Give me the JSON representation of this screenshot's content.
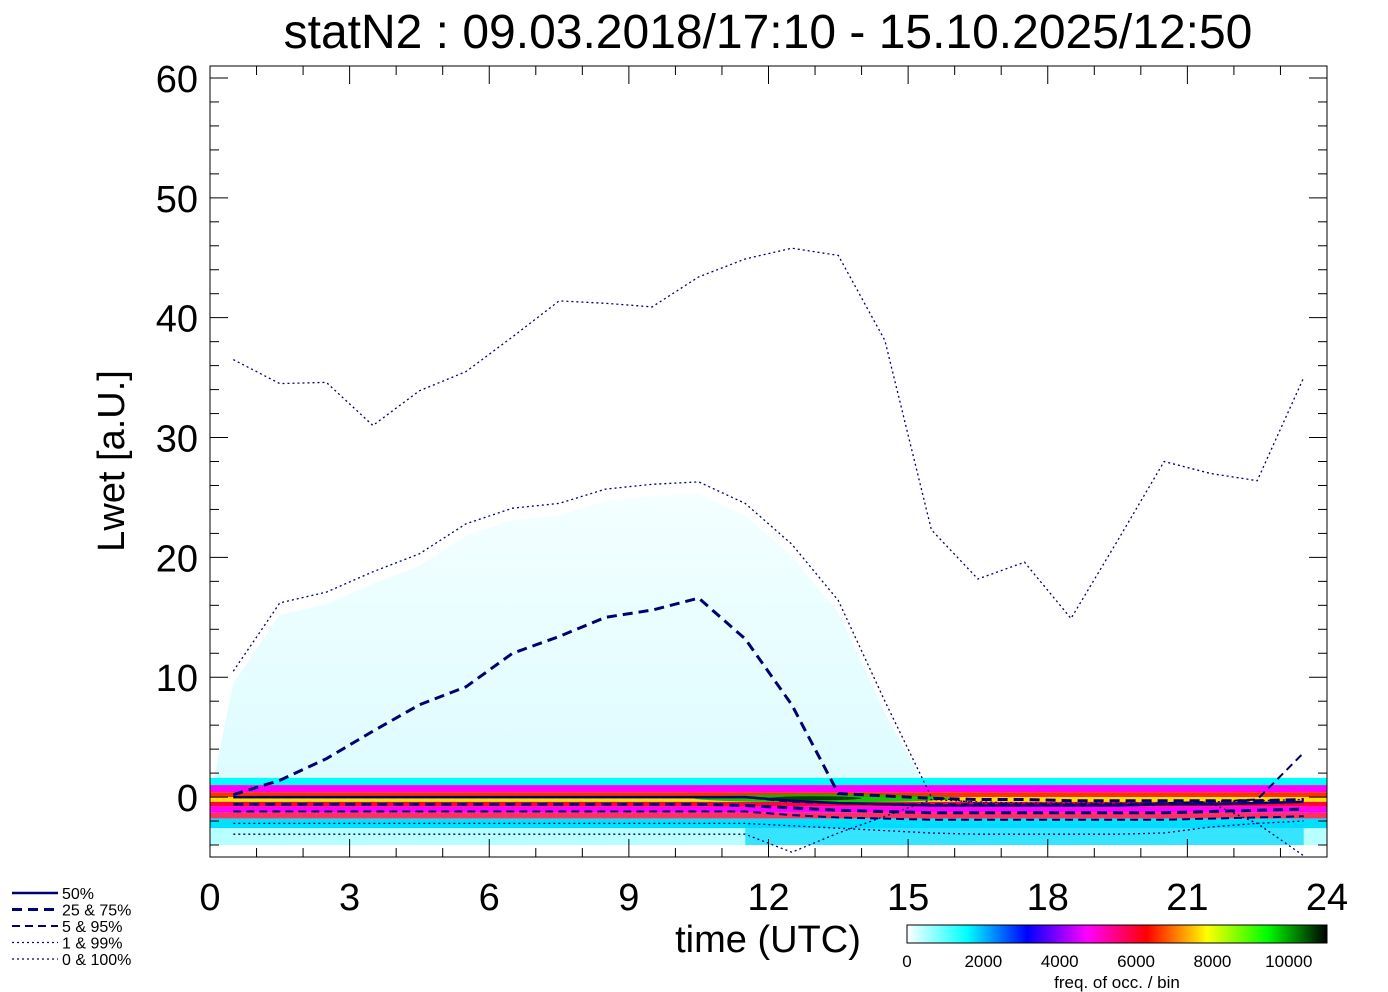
{
  "chart_data": {
    "type": "line",
    "title": "statN2 : 09.03.2018/17:10 - 15.10.2025/12:50",
    "xlabel": "time (UTC)",
    "ylabel": "Lwet [a.U.]",
    "xlim": [
      0,
      24
    ],
    "ylim": [
      -5,
      61
    ],
    "xticks": [
      0,
      3,
      6,
      9,
      12,
      15,
      18,
      21,
      24
    ],
    "yticks": [
      0,
      10,
      20,
      30,
      40,
      50,
      60
    ],
    "x": [
      0.5,
      1.5,
      2.5,
      3.5,
      4.5,
      5.5,
      6.5,
      7.5,
      8.5,
      9.5,
      10.5,
      11.5,
      12.5,
      13.5,
      14.5,
      15.5,
      16.5,
      17.5,
      18.5,
      19.5,
      20.5,
      21.5,
      22.5,
      23.5
    ],
    "series": [
      {
        "name": "50%",
        "style": "solid",
        "values": [
          0,
          0,
          0,
          0,
          0,
          0,
          0,
          0,
          0,
          0,
          0,
          0,
          -0.3,
          -0.5,
          -0.6,
          -0.7,
          -0.7,
          -0.7,
          -0.7,
          -0.7,
          -0.6,
          -0.6,
          -0.5,
          -0.4
        ]
      },
      {
        "name": "25%",
        "style": "dashed-thick",
        "values": [
          -0.6,
          -0.6,
          -0.6,
          -0.6,
          -0.6,
          -0.6,
          -0.6,
          -0.6,
          -0.6,
          -0.6,
          -0.6,
          -0.7,
          -0.9,
          -1.1,
          -1.2,
          -1.3,
          -1.3,
          -1.3,
          -1.3,
          -1.3,
          -1.3,
          -1.2,
          -1.1,
          -1.0
        ]
      },
      {
        "name": "75%",
        "style": "dashed-thick",
        "values": [
          0.2,
          1.4,
          3.2,
          5.5,
          7.7,
          9.2,
          12.0,
          13.4,
          15.0,
          15.6,
          16.6,
          13.2,
          7.7,
          0.3,
          0.1,
          -0.1,
          -0.2,
          -0.2,
          -0.3,
          -0.3,
          -0.3,
          -0.3,
          -0.3,
          -0.2
        ]
      },
      {
        "name": "5%",
        "style": "dashed",
        "values": [
          -1.2,
          -1.2,
          -1.2,
          -1.2,
          -1.2,
          -1.2,
          -1.2,
          -1.2,
          -1.2,
          -1.2,
          -1.2,
          -1.2,
          -1.5,
          -1.7,
          -1.8,
          -1.9,
          -1.9,
          -1.9,
          -1.9,
          -1.9,
          -1.9,
          -1.8,
          -1.7,
          -1.6
        ]
      },
      {
        "name": "95%",
        "style": "dashed",
        "values": [
          0.0,
          0.0,
          0.0,
          0.0,
          0.0,
          0.0,
          0.0,
          0.0,
          0.0,
          0.0,
          0.0,
          0.0,
          -0.4,
          -0.5,
          -0.6,
          -0.6,
          -0.6,
          -0.6,
          -0.6,
          -0.6,
          -0.5,
          -0.4,
          -0.2,
          3.7
        ]
      },
      {
        "name": "1%",
        "style": "dotted",
        "values": [
          -2.2,
          -2.2,
          -2.2,
          -2.2,
          -2.2,
          -2.2,
          -2.2,
          -2.2,
          -2.2,
          -2.2,
          -2.2,
          -2.2,
          -2.4,
          -2.6,
          -2.8,
          -3.0,
          -3.1,
          -3.1,
          -3.1,
          -3.1,
          -3.0,
          -2.5,
          -2.2,
          -2.0
        ]
      },
      {
        "name": "99%",
        "style": "dotted",
        "values": [
          10.5,
          16.2,
          17.1,
          18.8,
          20.3,
          22.8,
          24.1,
          24.5,
          25.7,
          26.1,
          26.3,
          24.5,
          21.1,
          16.4,
          8.0,
          0.0,
          -0.5,
          -0.6,
          -0.6,
          -0.6,
          -0.5,
          -0.4,
          -0.3,
          -0.2
        ]
      },
      {
        "name": "0%",
        "style": "dotted",
        "values": [
          -3.1,
          -3.1,
          -3.1,
          -3.1,
          -3.1,
          -3.1,
          -3.1,
          -3.1,
          -3.1,
          -3.1,
          -3.1,
          -3.1,
          -4.6,
          -3.0,
          -1.6,
          -0.2,
          -0.4,
          -0.5,
          -0.5,
          -0.5,
          -0.5,
          -0.5,
          -2.2,
          -4.9
        ]
      },
      {
        "name": "100%",
        "style": "dotted",
        "values": [
          36.5,
          34.5,
          34.6,
          31.0,
          33.9,
          35.5,
          38.4,
          41.4,
          41.2,
          40.9,
          43.4,
          44.9,
          45.8,
          45.2,
          38.1,
          22.3,
          18.2,
          19.6,
          14.9,
          21.4,
          28.0,
          27.0,
          26.4,
          35.0
        ]
      }
    ],
    "legend": {
      "placement": "bottom-left",
      "entries": [
        "50%",
        "25 &  75%",
        " 5 &  95%",
        " 1 &  99%",
        " 0 & 100%"
      ]
    },
    "colorbar": {
      "label": "freq. of occ. / bin",
      "min": 0,
      "max": 11000,
      "ticks": [
        0,
        2000,
        4000,
        6000,
        8000,
        10000
      ],
      "colors": [
        "#ffffff",
        "#00ffff",
        "#0000ff",
        "#ff00ff",
        "#ff0000",
        "#ffff00",
        "#00ff00",
        "#000000"
      ]
    },
    "heatmap_bands": [
      {
        "y": [
          1.0,
          1.6
        ],
        "color": "#00ffff"
      },
      {
        "y": [
          0.4,
          1.0
        ],
        "color": "#ff00ff"
      },
      {
        "y": [
          0.0,
          0.4
        ],
        "color": "#ff3000"
      },
      {
        "y": [
          -0.4,
          0.0
        ],
        "color": "#ffe000"
      },
      {
        "y": [
          -0.8,
          -0.4
        ],
        "color": "#ff0040"
      },
      {
        "y": [
          -1.3,
          -0.8
        ],
        "color": "#ff00ff"
      },
      {
        "y": [
          -1.8,
          -1.3
        ],
        "color": "#ff3060"
      },
      {
        "y": [
          -2.6,
          -1.8
        ],
        "color": "#00e0ff"
      },
      {
        "y": [
          -4.0,
          -2.6
        ],
        "color": "#b8ffff"
      }
    ]
  }
}
